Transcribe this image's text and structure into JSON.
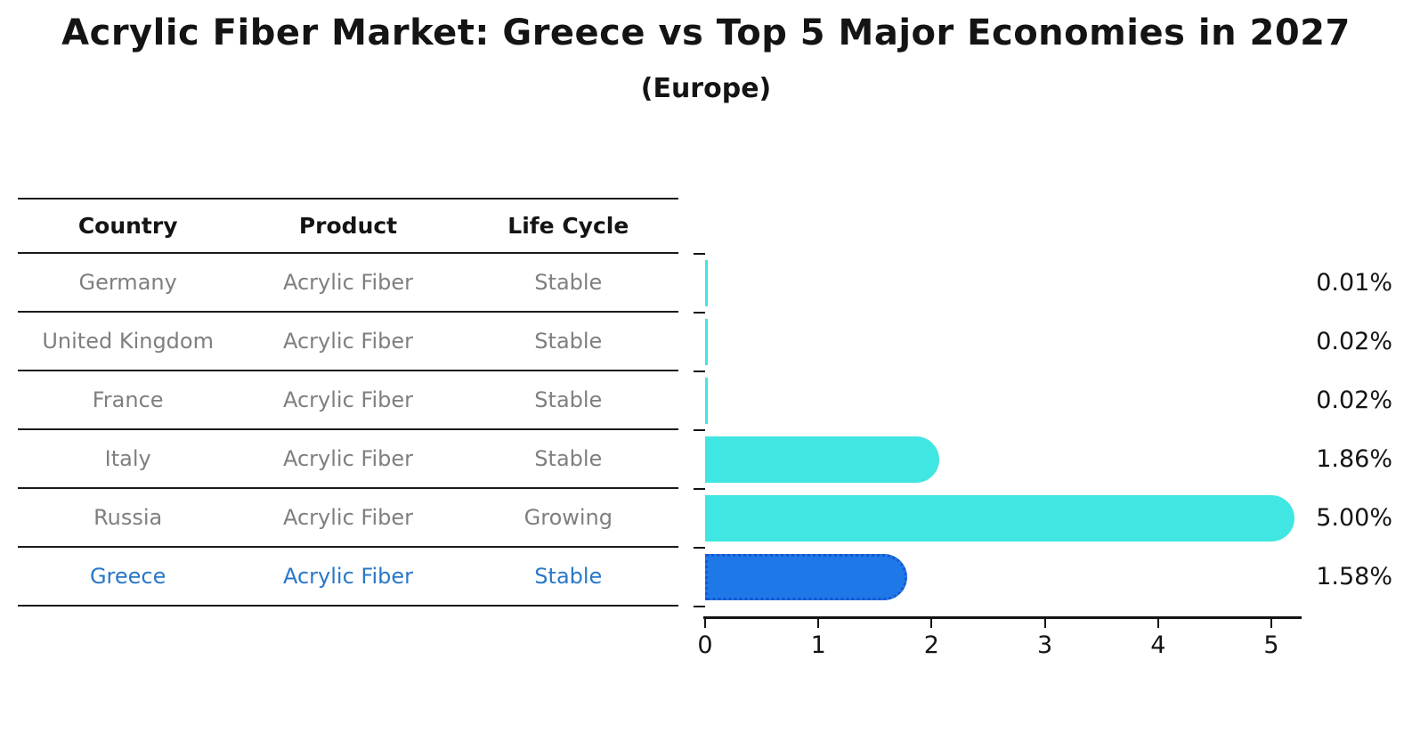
{
  "title": "Acrylic Fiber Market: Greece vs Top 5 Major Economies in 2027",
  "subtitle": "(Europe)",
  "table": {
    "headers": [
      "Country",
      "Product",
      "Life Cycle"
    ],
    "rows": [
      {
        "country": "Germany",
        "product": "Acrylic Fiber",
        "life_cycle": "Stable",
        "highlight": false
      },
      {
        "country": "United Kingdom",
        "product": "Acrylic Fiber",
        "life_cycle": "Stable",
        "highlight": false
      },
      {
        "country": "France",
        "product": "Acrylic Fiber",
        "life_cycle": "Stable",
        "highlight": false
      },
      {
        "country": "Italy",
        "product": "Acrylic Fiber",
        "life_cycle": "Stable",
        "highlight": false
      },
      {
        "country": "Russia",
        "product": "Acrylic Fiber",
        "life_cycle": "Growing",
        "highlight": false
      },
      {
        "country": "Greece",
        "product": "Acrylic Fiber",
        "life_cycle": "Stable",
        "highlight": true
      }
    ]
  },
  "chart_data": {
    "type": "bar",
    "orientation": "horizontal",
    "title": "Acrylic Fiber Market: Greece vs Top 5 Major Economies in 2027",
    "subtitle": "(Europe)",
    "categories": [
      "Germany",
      "United Kingdom",
      "France",
      "Italy",
      "Russia",
      "Greece"
    ],
    "values": [
      0.01,
      0.02,
      0.02,
      1.86,
      5.0,
      1.58
    ],
    "value_labels": [
      "0.01%",
      "0.02%",
      "0.02%",
      "1.86%",
      "5.00%",
      "1.58%"
    ],
    "x_ticks": [
      "0",
      "1",
      "2",
      "3",
      "4",
      "5"
    ],
    "xlim": [
      0,
      5.28
    ],
    "unit": "%",
    "highlight_index": 5,
    "grid": false,
    "legend_position": "none"
  },
  "colors": {
    "bar": "#40e6e1",
    "highlight_bar": "#1e78e8",
    "highlight_border": "#1857cf",
    "highlight_text": "#2878c8",
    "row_text": "#7f7f7f",
    "header_text": "#141414",
    "axis": "#141414"
  }
}
